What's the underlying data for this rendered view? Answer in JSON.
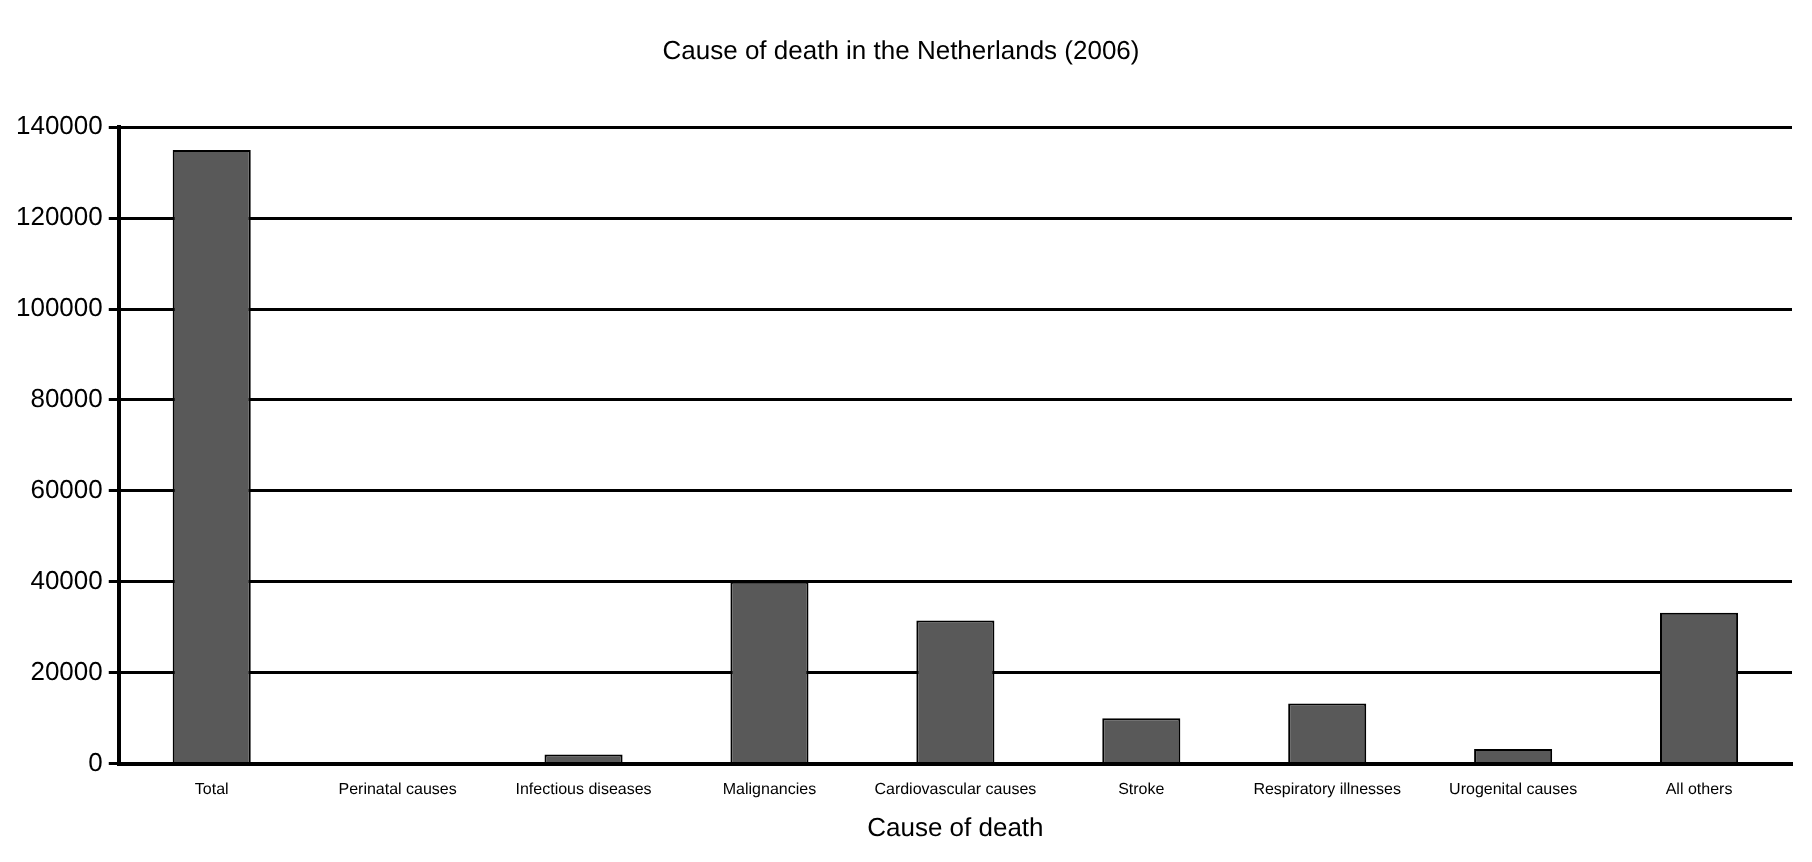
{
  "chart_data": {
    "type": "bar",
    "title": "Cause of death in the Netherlands (2006)",
    "xlabel": "Cause of death",
    "categories": [
      "Total",
      "Perinatal causes",
      "Infectious diseases",
      "Malignancies",
      "Cardiovascular causes",
      "Stroke",
      "Respiratory illnesses",
      "Urogenital causes",
      "All others"
    ],
    "values": [
      135000,
      0,
      2000,
      40000,
      31500,
      10000,
      13200,
      3200,
      33200
    ],
    "color": "#595959",
    "ylim": [
      0,
      140000
    ],
    "yticks": [
      0,
      20000,
      40000,
      60000,
      80000,
      100000,
      120000,
      140000
    ],
    "grid": "y",
    "legend": false
  }
}
